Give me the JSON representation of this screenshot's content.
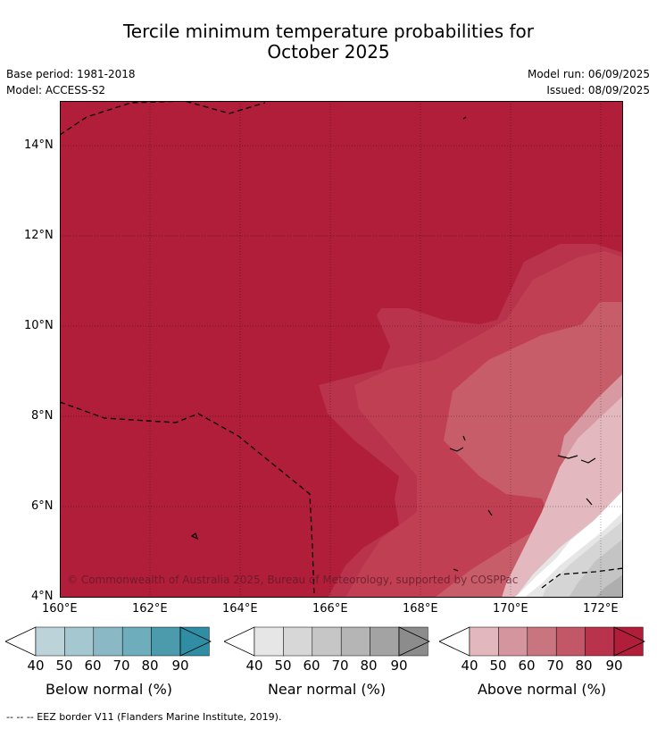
{
  "title_line1": "Tercile minimum temperature probabilities for",
  "title_line2": "October 2025",
  "base_period": "Base period: 1981-2018",
  "model": "Model: ACCESS-S2",
  "model_run": "Model run: 06/09/2025",
  "issued": "Issued: 08/09/2025",
  "copyright": "© Commonwealth of Australia 2025, Bureau of Meteorology, supported by COSPPac",
  "lat_labels": [
    "14°N",
    "12°N",
    "10°N",
    "8°N",
    "6°N",
    "4°N"
  ],
  "lon_labels": [
    "160°E",
    "162°E",
    "164°E",
    "166°E",
    "168°E",
    "170°E",
    "172°E"
  ],
  "colorbars": [
    {
      "title": "Below normal (%)",
      "ticks": [
        "40",
        "50",
        "60",
        "70",
        "80",
        "90"
      ],
      "colors": [
        "#bcd3da",
        "#a5c7cf",
        "#8ab9c5",
        "#6eaebc",
        "#4b9bad",
        "#2f8ea3"
      ]
    },
    {
      "title": "Near normal (%)",
      "ticks": [
        "40",
        "50",
        "60",
        "70",
        "80",
        "90"
      ],
      "colors": [
        "#e6e6e6",
        "#d7d7d7",
        "#c6c6c6",
        "#b5b5b5",
        "#a3a3a3",
        "#8c8c8c"
      ]
    },
    {
      "title": "Above normal (%)",
      "ticks": [
        "40",
        "50",
        "60",
        "70",
        "80",
        "90"
      ],
      "colors": [
        "#e2b7bd",
        "#d4959f",
        "#c9757f",
        "#c25767",
        "#b8334b",
        "#b01e3a"
      ]
    }
  ],
  "footer": "--  --  -- EEZ border V11 (Flanders Marine Institute, 2019)."
}
